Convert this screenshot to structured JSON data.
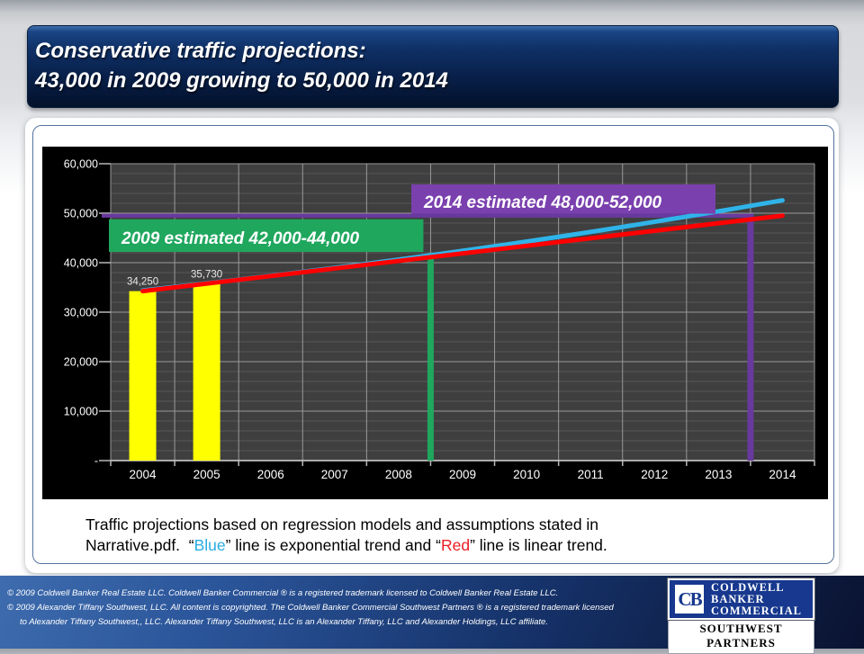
{
  "header": {
    "line1": "Conservative traffic projections:",
    "line2": "43,000 in 2009 growing to 50,000 in 2014"
  },
  "chart_data": {
    "type": "bar",
    "title": "",
    "xlabel": "",
    "ylabel": "",
    "categories": [
      "2004",
      "2005",
      "2006",
      "2007",
      "2008",
      "2009",
      "2010",
      "2011",
      "2012",
      "2013",
      "2014"
    ],
    "ylim": [
      0,
      60000
    ],
    "major_step": 10000,
    "minor_step": 2000,
    "ytick_labels": [
      "60,000",
      "50,000",
      "40,000",
      "30,000",
      "20,000",
      "10,000",
      "-"
    ],
    "bars": {
      "name": "actual-traffic-bars",
      "color": "#ffff00",
      "points": [
        {
          "category": "2004",
          "value": 34250,
          "label": "34,250"
        },
        {
          "category": "2005",
          "value": 35730,
          "label": "35,730"
        }
      ]
    },
    "series": [
      {
        "name": "exponential-trend",
        "legend": "Blue line = exponential trend",
        "color": "#2fb4e9",
        "curve": true,
        "points": [
          [
            2004,
            34400
          ],
          [
            2009,
            42400
          ],
          [
            2014,
            52600
          ]
        ]
      },
      {
        "name": "linear-trend",
        "legend": "Red line = linear trend",
        "color": "#ff0000",
        "curve": false,
        "points": [
          [
            2004,
            34250
          ],
          [
            2014,
            49500
          ]
        ]
      }
    ],
    "annotations": {
      "green": {
        "text": "2009 estimated 42,000-44,000",
        "box_color": "#1fa75e",
        "line_color": "#1fa75e",
        "at_boundary_year": 2009,
        "value": 42000
      },
      "purple": {
        "text": "2014 estimated  48,000-52,000",
        "box_color": "#7a40ae",
        "line_color": "#68399e",
        "at_boundary_year": 2014,
        "value": 49500
      }
    },
    "colors": {
      "chart_bg": "#000000",
      "plot_bg": "#3f3f3f",
      "grid_major": "#999999",
      "grid_minor": "#575757",
      "axis": "#d9d9d9",
      "tick": "#b8b8b8",
      "axis_text": "#ffffff",
      "bar_label_text": "#e8e8e8"
    },
    "legend_position": "none",
    "grid": true
  },
  "caption": {
    "line1": "Traffic projections based on regression models and assumptions stated in",
    "line2_pre": "Narrative.pdf.  “",
    "blue_word": "Blue",
    "mid": "” line is exponential trend and “",
    "red_word": "Red",
    "end": "” line is linear trend."
  },
  "footer": {
    "lines": [
      "©  2009 Coldwell Banker Real Estate  LLC. Coldwell Banker Commercial ® is a registered trademark licensed to Coldwell Banker Real Estate LLC.",
      "© 2009  Alexander Tiffany Southwest, LLC. All content is copyrighted. The Coldwell Banker Commercial Southwest Partners ® is a registered trademark licensed",
      "to  Alexander Tiffany Southwest,, LLC.   Alexander Tiffany Southwest, LLC is an  Alexander Tiffany, LLC and  Alexander Holdings, LLC affiliate."
    ]
  },
  "logo": {
    "monogram": "CB",
    "name_lines": [
      "COLDWELL",
      "BANKER",
      "COMMERCIAL"
    ],
    "subtitle": "SOUTHWEST PARTNERS"
  }
}
